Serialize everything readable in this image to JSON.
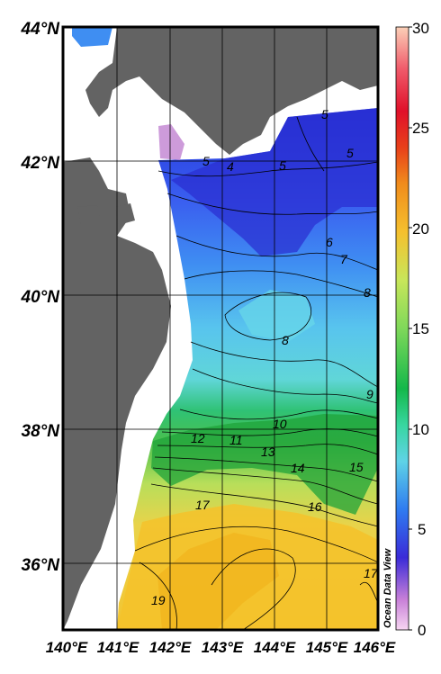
{
  "map": {
    "lat_labels": [
      "44°N",
      "42°N",
      "40°N",
      "38°N",
      "36°N"
    ],
    "lon_labels": [
      "140°E",
      "141°E",
      "142°E",
      "143°E",
      "144°E",
      "145°E",
      "146°E"
    ],
    "watermark": "Ocean Data View",
    "colorbar": {
      "ticks": [
        "30",
        "25",
        "20",
        "15",
        "10",
        "5",
        "0"
      ],
      "range": [
        0,
        30
      ]
    },
    "contour_labels": [
      "5",
      "5",
      "5",
      "5",
      "4",
      "6",
      "7",
      "8",
      "8",
      "9",
      "10",
      "11",
      "12",
      "13",
      "14",
      "15",
      "16",
      "17",
      "17",
      "19"
    ],
    "colors": {
      "land": "#636363",
      "ocean_cold": "#2a3ce0",
      "ocean_mid": "#5fd3e6",
      "ocean_warm": "#f0c83c",
      "front": "#1fa33a"
    }
  }
}
